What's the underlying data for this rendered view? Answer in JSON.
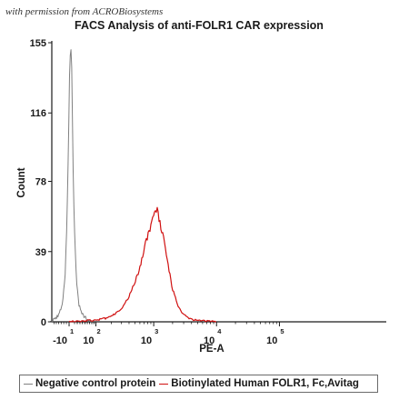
{
  "watermark": "with permission from ACROBiosystems",
  "chart_data": {
    "type": "line",
    "title": "FACS Analysis of anti-FOLR1 CAR expression",
    "xlabel": "PE-A",
    "ylabel": "Count",
    "xscale": "biexponential",
    "ylim": [
      0,
      155
    ],
    "yticks": [
      "0",
      "39",
      "78",
      "116",
      "155"
    ],
    "yticks_values": [
      0,
      39,
      78,
      116,
      155
    ],
    "xticks": [
      {
        "base": "-10",
        "exp": "1",
        "value": -10
      },
      {
        "base": "10",
        "exp": "2",
        "value": 100
      },
      {
        "base": "10",
        "exp": "3",
        "value": 1000
      },
      {
        "base": "10",
        "exp": "4",
        "value": 10000
      },
      {
        "base": "10",
        "exp": "5",
        "value": 100000
      }
    ],
    "grid": false,
    "legend_position": "bottom",
    "series": [
      {
        "name": "Negative control protein",
        "color": "#808080",
        "x": [
          -100,
          -70,
          -50,
          -35,
          -25,
          -18,
          -12,
          -8,
          -4,
          -1,
          0,
          2,
          4,
          7,
          12,
          18,
          26,
          40,
          60,
          90
        ],
        "y": [
          0,
          1,
          4,
          10,
          25,
          55,
          100,
          140,
          153,
          150,
          138,
          118,
          92,
          68,
          42,
          22,
          10,
          4,
          1,
          0
        ]
      },
      {
        "name": "Biotinylated Human FOLR1, Fc,Avitag",
        "color": "#d01010",
        "x": [
          -10,
          40,
          100,
          160,
          220,
          300,
          400,
          500,
          600,
          700,
          800,
          900,
          1000,
          1100,
          1200,
          1400,
          1600,
          2000,
          2500,
          3000,
          3600,
          4500,
          6000,
          10000
        ],
        "y": [
          0,
          0.5,
          1,
          2,
          4,
          7,
          14,
          22,
          30,
          40,
          48,
          54,
          58,
          62,
          59,
          48,
          36,
          18,
          8,
          4,
          2,
          1,
          0.5,
          0
        ]
      }
    ]
  }
}
